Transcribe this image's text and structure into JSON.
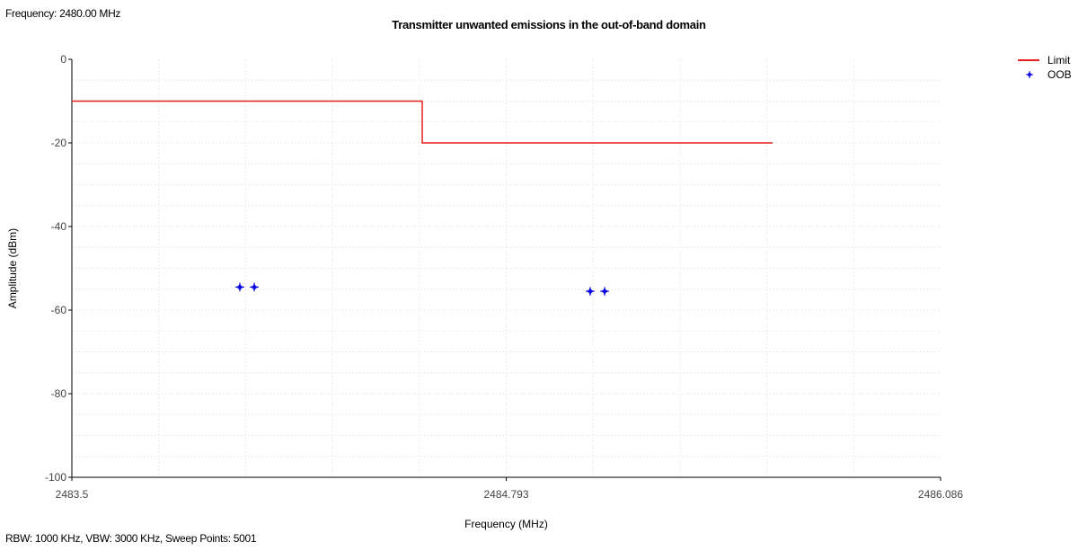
{
  "header": {
    "frequency": "Frequency: 2480.00 MHz"
  },
  "footer": {
    "settings": "RBW: 1000 KHz,  VBW: 3000 KHz,  Sweep Points: 5001"
  },
  "chart_data": {
    "type": "line",
    "title": "Transmitter unwanted emissions in the out-of-band domain",
    "xlabel": "Frequency (MHz)",
    "ylabel": "Amplitude (dBm)",
    "xlim": [
      2483.5,
      2486.086
    ],
    "ylim": [
      -100,
      0
    ],
    "x_ticks": [
      "2483.5",
      "2484.793",
      "2486.086"
    ],
    "y_ticks": [
      "0",
      "-20",
      "-40",
      "-60",
      "-80",
      "-100"
    ],
    "grid": true,
    "legend_position": "top-right",
    "series": [
      {
        "name": "Limit",
        "style": "line",
        "color": "#e81e1e",
        "points": [
          [
            2483.5,
            -10
          ],
          [
            2484.543,
            -10
          ],
          [
            2484.543,
            -20
          ],
          [
            2485.586,
            -20
          ]
        ]
      },
      {
        "name": "OOB",
        "style": "marker",
        "color": "#0a0ae0",
        "points": [
          [
            2484.0,
            -54.5
          ],
          [
            2484.043,
            -54.5
          ],
          [
            2485.043,
            -55.5
          ],
          [
            2485.086,
            -55.5
          ]
        ]
      }
    ]
  }
}
